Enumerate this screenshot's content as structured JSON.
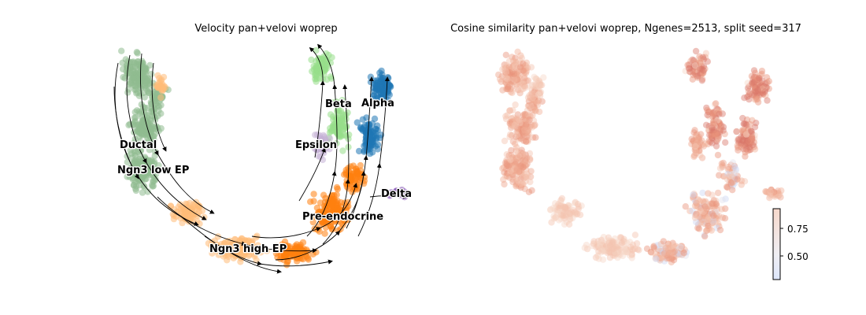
{
  "chart_data": [
    {
      "type": "scatter",
      "title": "Velocity pan+velovi woprep",
      "overlay": "velocity streamlines",
      "clusters": [
        {
          "name": "Ductal",
          "color": "#8fbc8f"
        },
        {
          "name": "Ngn3 low EP",
          "color": "#8fbc8f"
        },
        {
          "name": "Ngn3 high EP",
          "color": "#ffbb78"
        },
        {
          "name": "Pre-endocrine",
          "color": "#ff7f0e"
        },
        {
          "name": "Beta",
          "color": "#98df8a"
        },
        {
          "name": "Alpha",
          "color": "#1f77b4"
        },
        {
          "name": "Epsilon",
          "color": "#c5b0d5"
        },
        {
          "name": "Delta",
          "color": "#9467bd"
        }
      ]
    },
    {
      "type": "scatter",
      "title": "Cosine similarity pan+velovi woprep, Ngenes=2513, split seed=317",
      "colormap": "coolwarm",
      "colorbar": {
        "ticks": [
          0.75,
          0.5
        ],
        "tick_labels": [
          "0.75",
          "0.50"
        ],
        "range": [
          0.35,
          0.95
        ]
      }
    }
  ]
}
